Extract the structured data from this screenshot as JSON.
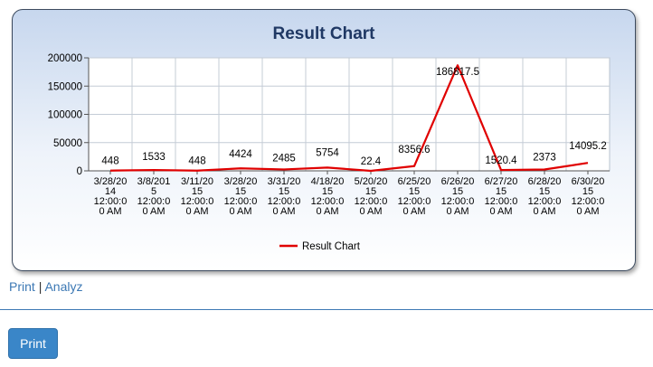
{
  "chart_data": {
    "type": "line",
    "title": "Result Chart",
    "categories": [
      [
        "3/28/20",
        "14",
        "12:00:0",
        "0 AM"
      ],
      [
        "3/8/201",
        "5",
        "12:00:0",
        "0 AM"
      ],
      [
        "3/11/20",
        "15",
        "12:00:0",
        "0 AM"
      ],
      [
        "3/28/20",
        "15",
        "12:00:0",
        "0 AM"
      ],
      [
        "3/31/20",
        "15",
        "12:00:0",
        "0 AM"
      ],
      [
        "4/18/20",
        "15",
        "12:00:0",
        "0 AM"
      ],
      [
        "5/20/20",
        "15",
        "12:00:0",
        "0 AM"
      ],
      [
        "6/25/20",
        "15",
        "12:00:0",
        "0 AM"
      ],
      [
        "6/26/20",
        "15",
        "12:00:0",
        "0 AM"
      ],
      [
        "6/27/20",
        "15",
        "12:00:0",
        "0 AM"
      ],
      [
        "6/28/20",
        "15",
        "12:00:0",
        "0 AM"
      ],
      [
        "6/30/20",
        "15",
        "12:00:0",
        "0 AM"
      ]
    ],
    "series": [
      {
        "name": "Result Chart",
        "color": "#e00000",
        "values": [
          448,
          1533,
          448,
          4424,
          2485,
          5754,
          22.4,
          8356.6,
          186817.5,
          1520.4,
          2373,
          14095.2
        ]
      }
    ],
    "data_labels": [
      "448",
      "1533",
      "448",
      "4424",
      "2485",
      "5754",
      "22.4",
      "8356.6",
      "186817.5",
      "1520.4",
      "2373",
      "14095.2"
    ],
    "ylim": [
      0,
      200000
    ],
    "yticks": [
      "0",
      "50000",
      "100000",
      "150000",
      "200000"
    ],
    "xlabel": "",
    "ylabel": "",
    "grid": true,
    "legend": "bottom"
  },
  "links": {
    "print": "Print",
    "separator": "|",
    "analyze": "Analyz"
  },
  "button": {
    "print": "Print"
  }
}
